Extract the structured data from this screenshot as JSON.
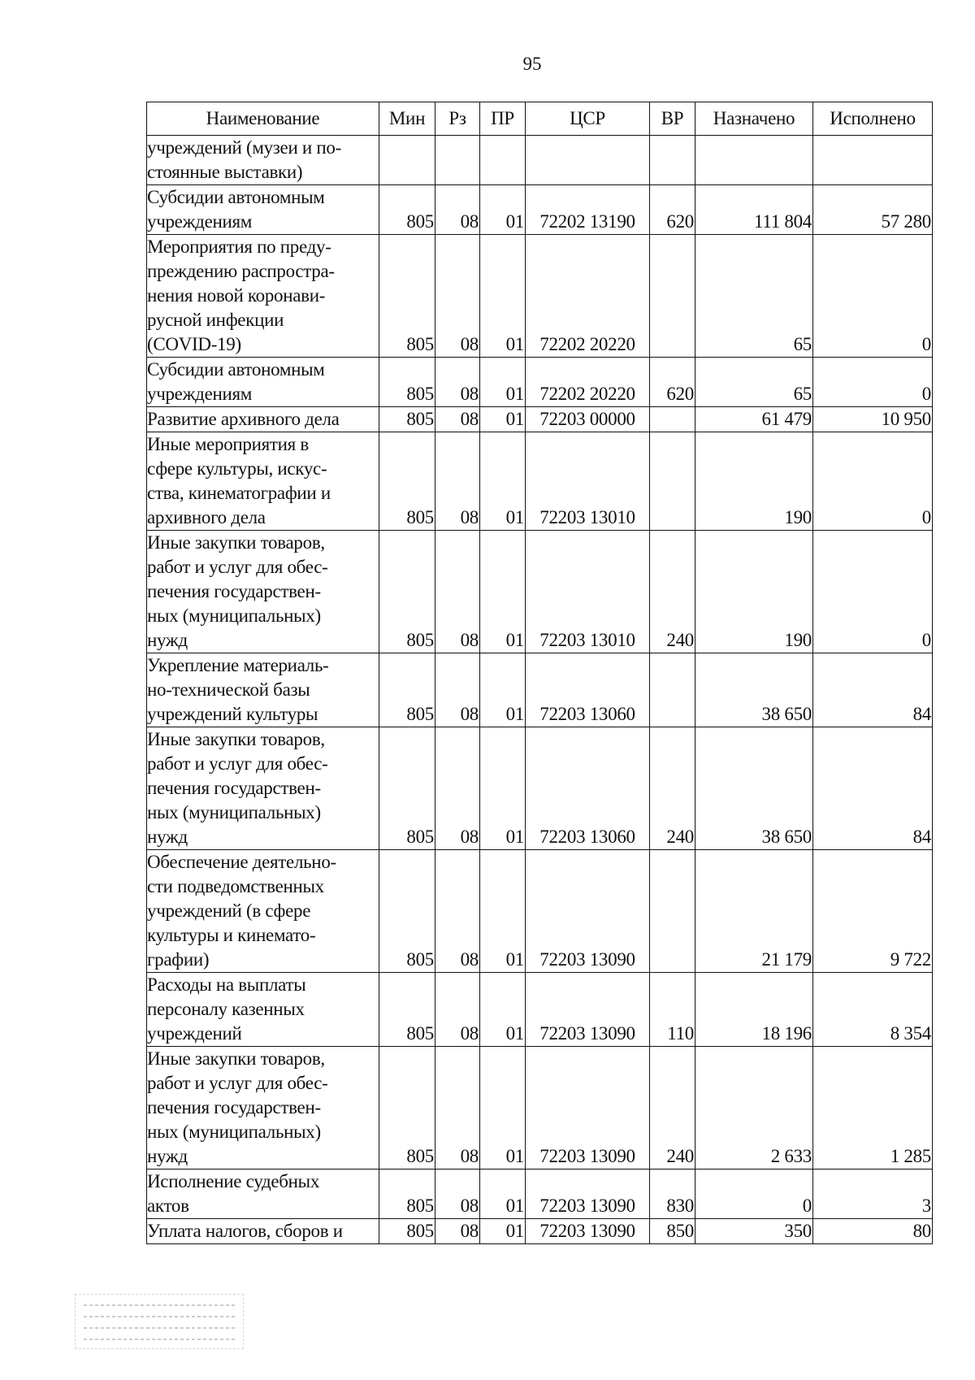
{
  "page_number": "95",
  "table": {
    "headers": [
      "Наименование",
      "Мин",
      "Рз",
      "ПР",
      "ЦСР",
      "ВР",
      "Назначено",
      "Исполнено"
    ],
    "rows": [
      {
        "name": "учреждений (музеи и по-\nстоянные выставки)",
        "min": "",
        "rz": "",
        "pr": "",
        "csr": "",
        "vr": "",
        "assigned": "",
        "executed": ""
      },
      {
        "name": "Субсидии автономным\nучреждениям",
        "min": "805",
        "rz": "08",
        "pr": "01",
        "csr": "72202 13190",
        "vr": "620",
        "assigned": "111 804",
        "executed": "57 280"
      },
      {
        "name": "Мероприятия по преду-\nпреждению распростра-\nнения новой коронави-\nрусной инфекции\n(COVID-19)",
        "min": "805",
        "rz": "08",
        "pr": "01",
        "csr": "72202 20220",
        "vr": "",
        "assigned": "65",
        "executed": "0"
      },
      {
        "name": "Субсидии автономным\nучреждениям",
        "min": "805",
        "rz": "08",
        "pr": "01",
        "csr": "72202 20220",
        "vr": "620",
        "assigned": "65",
        "executed": "0"
      },
      {
        "name": "Развитие архивного дела",
        "min": "805",
        "rz": "08",
        "pr": "01",
        "csr": "72203 00000",
        "vr": "",
        "assigned": "61 479",
        "executed": "10 950"
      },
      {
        "name": "Иные мероприятия в\nсфере культуры, искус-\nства, кинематографии и\nархивного дела",
        "min": "805",
        "rz": "08",
        "pr": "01",
        "csr": "72203 13010",
        "vr": "",
        "assigned": "190",
        "executed": "0"
      },
      {
        "name": "Иные закупки товаров,\nработ и услуг для обес-\nпечения государствен-\nных (муниципальных)\nнужд",
        "min": "805",
        "rz": "08",
        "pr": "01",
        "csr": "72203 13010",
        "vr": "240",
        "assigned": "190",
        "executed": "0"
      },
      {
        "name": "Укрепление материаль-\nно-технической базы\nучреждений культуры",
        "min": "805",
        "rz": "08",
        "pr": "01",
        "csr": "72203 13060",
        "vr": "",
        "assigned": "38 650",
        "executed": "84"
      },
      {
        "name": "Иные закупки товаров,\nработ и услуг для обес-\nпечения государствен-\nных (муниципальных)\nнужд",
        "min": "805",
        "rz": "08",
        "pr": "01",
        "csr": "72203 13060",
        "vr": "240",
        "assigned": "38 650",
        "executed": "84"
      },
      {
        "name": "Обеспечение деятельно-\nсти подведомственных\nучреждений (в сфере\nкультуры и кинемато-\nграфии)",
        "min": "805",
        "rz": "08",
        "pr": "01",
        "csr": "72203 13090",
        "vr": "",
        "assigned": "21 179",
        "executed": "9 722"
      },
      {
        "name": "Расходы на выплаты\nперсоналу казенных\nучреждений",
        "min": "805",
        "rz": "08",
        "pr": "01",
        "csr": "72203 13090",
        "vr": "110",
        "assigned": "18 196",
        "executed": "8 354"
      },
      {
        "name": "Иные закупки товаров,\nработ и услуг для обес-\nпечения государствен-\nных (муниципальных)\nнужд",
        "min": "805",
        "rz": "08",
        "pr": "01",
        "csr": "72203 13090",
        "vr": "240",
        "assigned": "2 633",
        "executed": "1 285"
      },
      {
        "name": "Исполнение судебных\nактов",
        "min": "805",
        "rz": "08",
        "pr": "01",
        "csr": "72203 13090",
        "vr": "830",
        "assigned": "0",
        "executed": "3"
      },
      {
        "name": "Уплата налогов, сборов и",
        "min": "805",
        "rz": "08",
        "pr": "01",
        "csr": "72203 13090",
        "vr": "850",
        "assigned": "350",
        "executed": "80"
      }
    ]
  }
}
